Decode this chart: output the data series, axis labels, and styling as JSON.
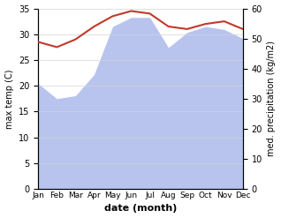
{
  "months": [
    "Jan",
    "Feb",
    "Mar",
    "Apr",
    "May",
    "Jun",
    "Jul",
    "Aug",
    "Sep",
    "Oct",
    "Nov",
    "Dec"
  ],
  "temp": [
    28.5,
    27.5,
    29.0,
    31.5,
    33.5,
    34.5,
    34.0,
    31.5,
    31.0,
    32.0,
    32.5,
    31.0
  ],
  "precip": [
    35.0,
    30.0,
    31.0,
    38.0,
    54.0,
    57.0,
    57.0,
    47.0,
    52.0,
    54.0,
    53.0,
    50.0
  ],
  "temp_color": "#c0392b",
  "precip_color": "#b8c4ee",
  "temp_ylim": [
    0,
    35
  ],
  "precip_ylim": [
    0,
    60
  ],
  "temp_yticks": [
    0,
    5,
    10,
    15,
    20,
    25,
    30,
    35
  ],
  "precip_yticks": [
    0,
    10,
    20,
    30,
    40,
    50,
    60
  ],
  "xlabel": "date (month)",
  "ylabel_left": "max temp (C)",
  "ylabel_right": "med. precipitation (kg/m2)"
}
